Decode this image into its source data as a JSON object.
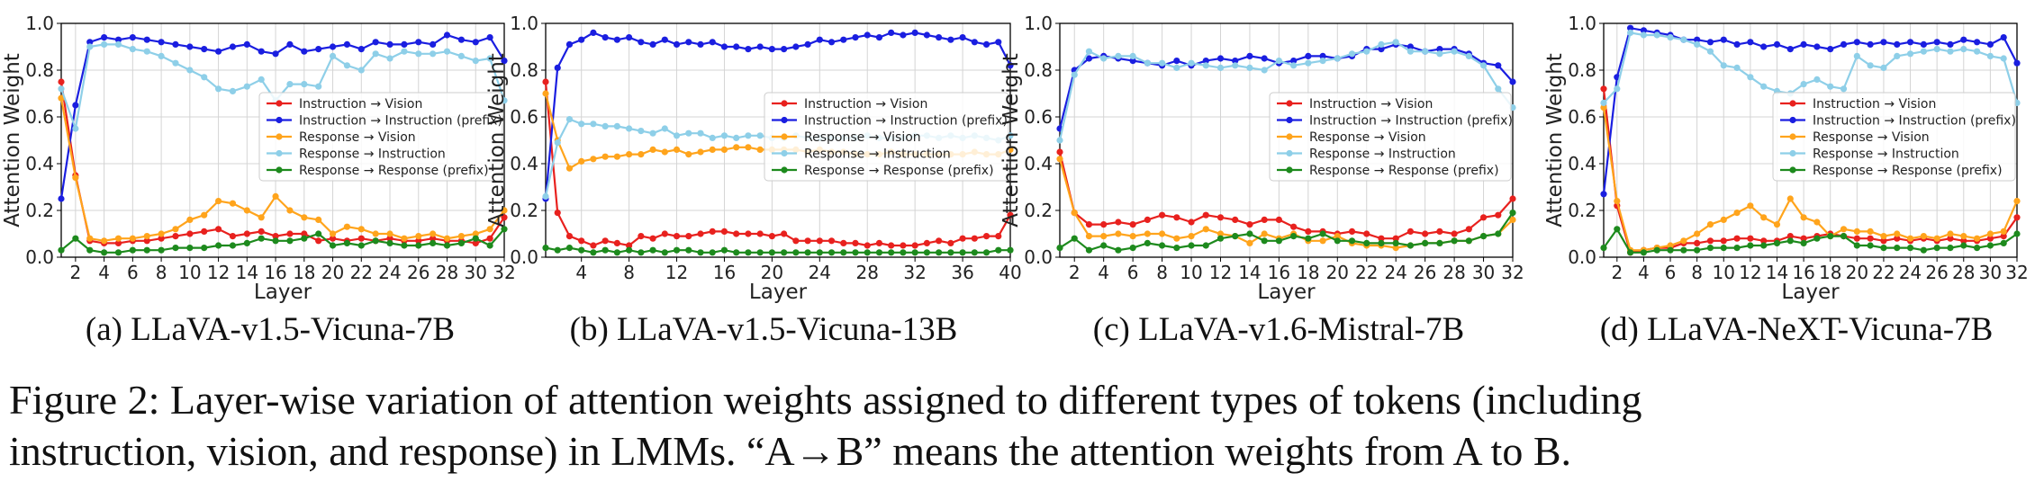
{
  "figure": {
    "caption_line1": "Figure 2: Layer-wise variation of attention weights assigned to different types of tokens (including",
    "caption_line2": "instruction, vision, and response) in LMMs. “A→B” means the attention weights from A to B."
  },
  "colors": {
    "inst_vision": "#e8211e",
    "inst_inst": "#1a1ee0",
    "resp_vision": "#ffa41c",
    "resp_inst": "#8ecfe8",
    "resp_resp": "#1d8a1d"
  },
  "chart_data": [
    {
      "type": "line",
      "caption": "(a) LLaVA-v1.5-Vicuna-7B",
      "xlabel": "Layer",
      "ylabel": "Attention Weight",
      "xlim": [
        1,
        32
      ],
      "ylim": [
        0.0,
        1.0
      ],
      "xticks": [
        "2",
        "4",
        "6",
        "8",
        "10",
        "12",
        "14",
        "16",
        "18",
        "20",
        "22",
        "24",
        "26",
        "28",
        "30",
        "32"
      ],
      "yticks": [
        "0.0",
        "0.2",
        "0.4",
        "0.6",
        "0.8",
        "1.0"
      ],
      "legend_position": "center-right",
      "x": [
        1,
        2,
        3,
        4,
        5,
        6,
        7,
        8,
        9,
        10,
        11,
        12,
        13,
        14,
        15,
        16,
        17,
        18,
        19,
        20,
        21,
        22,
        23,
        24,
        25,
        26,
        27,
        28,
        29,
        30,
        31,
        32
      ],
      "series": [
        {
          "name": "Instruction → Vision",
          "color_key": "inst_vision",
          "values": [
            0.75,
            0.35,
            0.07,
            0.06,
            0.06,
            0.07,
            0.07,
            0.08,
            0.09,
            0.1,
            0.11,
            0.12,
            0.09,
            0.1,
            0.11,
            0.09,
            0.1,
            0.1,
            0.07,
            0.08,
            0.07,
            0.08,
            0.07,
            0.08,
            0.07,
            0.07,
            0.08,
            0.07,
            0.07,
            0.06,
            0.08,
            0.17
          ]
        },
        {
          "name": "Instruction → Instruction (prefix)",
          "color_key": "inst_inst",
          "values": [
            0.25,
            0.65,
            0.92,
            0.94,
            0.93,
            0.94,
            0.93,
            0.92,
            0.91,
            0.9,
            0.89,
            0.88,
            0.9,
            0.91,
            0.88,
            0.87,
            0.91,
            0.88,
            0.89,
            0.9,
            0.91,
            0.89,
            0.92,
            0.91,
            0.91,
            0.92,
            0.91,
            0.95,
            0.93,
            0.92,
            0.94,
            0.84
          ]
        },
        {
          "name": "Response → Vision",
          "color_key": "resp_vision",
          "values": [
            0.68,
            0.34,
            0.08,
            0.07,
            0.08,
            0.08,
            0.09,
            0.1,
            0.12,
            0.16,
            0.18,
            0.24,
            0.23,
            0.2,
            0.17,
            0.26,
            0.2,
            0.17,
            0.16,
            0.1,
            0.13,
            0.12,
            0.1,
            0.1,
            0.08,
            0.09,
            0.1,
            0.08,
            0.09,
            0.1,
            0.12,
            0.2
          ]
        },
        {
          "name": "Response → Instruction",
          "color_key": "resp_inst",
          "values": [
            0.72,
            0.55,
            0.9,
            0.91,
            0.91,
            0.89,
            0.88,
            0.86,
            0.83,
            0.8,
            0.77,
            0.72,
            0.71,
            0.73,
            0.76,
            0.67,
            0.74,
            0.74,
            0.73,
            0.86,
            0.82,
            0.8,
            0.87,
            0.85,
            0.88,
            0.87,
            0.87,
            0.88,
            0.86,
            0.84,
            0.85,
            0.67
          ]
        },
        {
          "name": "Response → Response (prefix)",
          "color_key": "resp_resp",
          "values": [
            0.03,
            0.08,
            0.03,
            0.02,
            0.02,
            0.03,
            0.03,
            0.03,
            0.04,
            0.04,
            0.04,
            0.05,
            0.05,
            0.06,
            0.08,
            0.07,
            0.07,
            0.08,
            0.1,
            0.05,
            0.06,
            0.05,
            0.07,
            0.06,
            0.05,
            0.05,
            0.06,
            0.05,
            0.06,
            0.08,
            0.05,
            0.12
          ]
        }
      ]
    },
    {
      "type": "line",
      "caption": "(b) LLaVA-v1.5-Vicuna-13B",
      "xlabel": "Layer",
      "ylabel": "Attention Weight",
      "xlim": [
        1,
        40
      ],
      "ylim": [
        0.0,
        1.0
      ],
      "xticks": [
        "4",
        "8",
        "12",
        "16",
        "20",
        "24",
        "28",
        "32",
        "36",
        "40"
      ],
      "yticks": [
        "0.0",
        "0.2",
        "0.4",
        "0.6",
        "0.8",
        "1.0"
      ],
      "legend_position": "center-right",
      "x": [
        1,
        2,
        3,
        4,
        5,
        6,
        7,
        8,
        9,
        10,
        11,
        12,
        13,
        14,
        15,
        16,
        17,
        18,
        19,
        20,
        21,
        22,
        23,
        24,
        25,
        26,
        27,
        28,
        29,
        30,
        31,
        32,
        33,
        34,
        35,
        36,
        37,
        38,
        39,
        40
      ],
      "series": [
        {
          "name": "Instruction → Vision",
          "color_key": "inst_vision",
          "values": [
            0.75,
            0.19,
            0.09,
            0.07,
            0.05,
            0.07,
            0.06,
            0.05,
            0.09,
            0.08,
            0.1,
            0.09,
            0.09,
            0.1,
            0.11,
            0.11,
            0.1,
            0.1,
            0.1,
            0.09,
            0.1,
            0.07,
            0.07,
            0.07,
            0.07,
            0.06,
            0.06,
            0.05,
            0.06,
            0.05,
            0.05,
            0.05,
            0.06,
            0.07,
            0.06,
            0.08,
            0.08,
            0.09,
            0.09,
            0.18
          ]
        },
        {
          "name": "Instruction → Instruction (prefix)",
          "color_key": "inst_inst",
          "values": [
            0.25,
            0.81,
            0.91,
            0.93,
            0.96,
            0.94,
            0.93,
            0.94,
            0.92,
            0.91,
            0.93,
            0.91,
            0.92,
            0.91,
            0.92,
            0.9,
            0.9,
            0.89,
            0.9,
            0.89,
            0.89,
            0.9,
            0.91,
            0.93,
            0.92,
            0.93,
            0.94,
            0.95,
            0.94,
            0.96,
            0.95,
            0.96,
            0.95,
            0.94,
            0.93,
            0.94,
            0.92,
            0.91,
            0.92,
            0.82
          ]
        },
        {
          "name": "Response → Vision",
          "color_key": "resp_vision",
          "values": [
            0.7,
            0.5,
            0.38,
            0.41,
            0.42,
            0.43,
            0.43,
            0.44,
            0.44,
            0.46,
            0.45,
            0.46,
            0.44,
            0.45,
            0.46,
            0.46,
            0.47,
            0.47,
            0.46,
            0.46,
            0.46,
            0.46,
            0.45,
            0.46,
            0.45,
            0.45,
            0.44,
            0.44,
            0.44,
            0.45,
            0.44,
            0.44,
            0.44,
            0.44,
            0.44,
            0.44,
            0.45,
            0.44,
            0.44,
            0.46
          ]
        },
        {
          "name": "Response → Instruction",
          "color_key": "resp_inst",
          "values": [
            0.26,
            0.49,
            0.59,
            0.57,
            0.57,
            0.56,
            0.56,
            0.55,
            0.54,
            0.53,
            0.55,
            0.52,
            0.53,
            0.53,
            0.51,
            0.52,
            0.51,
            0.52,
            0.52,
            0.51,
            0.51,
            0.52,
            0.51,
            0.51,
            0.51,
            0.51,
            0.51,
            0.52,
            0.51,
            0.51,
            0.51,
            0.52,
            0.52,
            0.51,
            0.52,
            0.51,
            0.52,
            0.51,
            0.5,
            0.52
          ]
        },
        {
          "name": "Response → Response (prefix)",
          "color_key": "resp_resp",
          "values": [
            0.04,
            0.03,
            0.04,
            0.03,
            0.02,
            0.03,
            0.02,
            0.03,
            0.02,
            0.03,
            0.02,
            0.03,
            0.03,
            0.02,
            0.02,
            0.03,
            0.02,
            0.02,
            0.02,
            0.02,
            0.02,
            0.02,
            0.02,
            0.02,
            0.02,
            0.02,
            0.02,
            0.02,
            0.02,
            0.02,
            0.02,
            0.02,
            0.02,
            0.02,
            0.02,
            0.02,
            0.02,
            0.02,
            0.03,
            0.03
          ]
        }
      ]
    },
    {
      "type": "line",
      "caption": "(c) LLaVA-v1.6-Mistral-7B",
      "xlabel": "Layer",
      "ylabel": "Attention Weight",
      "xlim": [
        1,
        32
      ],
      "ylim": [
        0.0,
        1.0
      ],
      "xticks": [
        "2",
        "4",
        "6",
        "8",
        "10",
        "12",
        "14",
        "16",
        "18",
        "20",
        "22",
        "24",
        "26",
        "28",
        "30",
        "32"
      ],
      "yticks": [
        "0.0",
        "0.2",
        "0.4",
        "0.6",
        "0.8",
        "1.0"
      ],
      "legend_position": "center-right",
      "x": [
        1,
        2,
        3,
        4,
        5,
        6,
        7,
        8,
        9,
        10,
        11,
        12,
        13,
        14,
        15,
        16,
        17,
        18,
        19,
        20,
        21,
        22,
        23,
        24,
        25,
        26,
        27,
        28,
        29,
        30,
        31,
        32
      ],
      "series": [
        {
          "name": "Instruction → Vision",
          "color_key": "inst_vision",
          "values": [
            0.45,
            0.19,
            0.14,
            0.14,
            0.15,
            0.14,
            0.16,
            0.18,
            0.17,
            0.15,
            0.18,
            0.17,
            0.16,
            0.14,
            0.16,
            0.16,
            0.13,
            0.11,
            0.11,
            0.1,
            0.11,
            0.1,
            0.08,
            0.08,
            0.11,
            0.1,
            0.11,
            0.1,
            0.12,
            0.17,
            0.18,
            0.25
          ]
        },
        {
          "name": "Instruction → Instruction (prefix)",
          "color_key": "inst_inst",
          "values": [
            0.55,
            0.8,
            0.85,
            0.86,
            0.85,
            0.84,
            0.83,
            0.82,
            0.84,
            0.82,
            0.84,
            0.85,
            0.84,
            0.86,
            0.85,
            0.83,
            0.84,
            0.86,
            0.86,
            0.85,
            0.86,
            0.89,
            0.89,
            0.91,
            0.9,
            0.88,
            0.89,
            0.89,
            0.87,
            0.83,
            0.82,
            0.75
          ]
        },
        {
          "name": "Response → Vision",
          "color_key": "resp_vision",
          "values": [
            0.42,
            0.19,
            0.09,
            0.09,
            0.1,
            0.09,
            0.1,
            0.1,
            0.08,
            0.09,
            0.12,
            0.1,
            0.09,
            0.06,
            0.1,
            0.08,
            0.1,
            0.07,
            0.07,
            0.09,
            0.06,
            0.05,
            0.05,
            0.04,
            0.05,
            0.06,
            0.06,
            0.07,
            0.07,
            0.09,
            0.1,
            0.16
          ]
        },
        {
          "name": "Response → Instruction",
          "color_key": "resp_inst",
          "values": [
            0.5,
            0.78,
            0.88,
            0.85,
            0.86,
            0.86,
            0.83,
            0.83,
            0.81,
            0.83,
            0.82,
            0.81,
            0.82,
            0.81,
            0.8,
            0.84,
            0.82,
            0.83,
            0.84,
            0.85,
            0.87,
            0.88,
            0.91,
            0.92,
            0.88,
            0.88,
            0.87,
            0.88,
            0.86,
            0.82,
            0.72,
            0.64
          ]
        },
        {
          "name": "Response → Response (prefix)",
          "color_key": "resp_resp",
          "values": [
            0.04,
            0.08,
            0.03,
            0.05,
            0.03,
            0.04,
            0.06,
            0.05,
            0.04,
            0.05,
            0.05,
            0.08,
            0.09,
            0.1,
            0.07,
            0.07,
            0.09,
            0.08,
            0.1,
            0.07,
            0.07,
            0.06,
            0.06,
            0.06,
            0.05,
            0.06,
            0.06,
            0.07,
            0.07,
            0.09,
            0.1,
            0.19
          ]
        }
      ]
    },
    {
      "type": "line",
      "caption": "(d) LLaVA-NeXT-Vicuna-7B",
      "xlabel": "Layer",
      "ylabel": "Attention Weight",
      "xlim": [
        1,
        32
      ],
      "ylim": [
        0.0,
        1.0
      ],
      "xticks": [
        "2",
        "4",
        "6",
        "8",
        "10",
        "12",
        "14",
        "16",
        "18",
        "20",
        "22",
        "24",
        "26",
        "28",
        "30",
        "32"
      ],
      "yticks": [
        "0.0",
        "0.2",
        "0.4",
        "0.6",
        "0.8",
        "1.0"
      ],
      "legend_position": "center-right",
      "x": [
        1,
        2,
        3,
        4,
        5,
        6,
        7,
        8,
        9,
        10,
        11,
        12,
        13,
        14,
        15,
        16,
        17,
        18,
        19,
        20,
        21,
        22,
        23,
        24,
        25,
        26,
        27,
        28,
        29,
        30,
        31,
        32
      ],
      "series": [
        {
          "name": "Instruction → Vision",
          "color_key": "inst_vision",
          "values": [
            0.72,
            0.22,
            0.02,
            0.03,
            0.04,
            0.04,
            0.06,
            0.06,
            0.07,
            0.07,
            0.08,
            0.08,
            0.07,
            0.07,
            0.09,
            0.08,
            0.09,
            0.1,
            0.09,
            0.08,
            0.08,
            0.07,
            0.08,
            0.07,
            0.08,
            0.07,
            0.08,
            0.07,
            0.07,
            0.08,
            0.09,
            0.17
          ]
        },
        {
          "name": "Instruction → Instruction (prefix)",
          "color_key": "inst_inst",
          "values": [
            0.27,
            0.77,
            0.98,
            0.97,
            0.96,
            0.95,
            0.93,
            0.93,
            0.92,
            0.93,
            0.91,
            0.92,
            0.9,
            0.91,
            0.89,
            0.91,
            0.9,
            0.89,
            0.91,
            0.92,
            0.91,
            0.92,
            0.91,
            0.92,
            0.91,
            0.92,
            0.91,
            0.93,
            0.92,
            0.91,
            0.94,
            0.83
          ]
        },
        {
          "name": "Response → Vision",
          "color_key": "resp_vision",
          "values": [
            0.64,
            0.24,
            0.03,
            0.03,
            0.04,
            0.05,
            0.07,
            0.1,
            0.14,
            0.16,
            0.19,
            0.22,
            0.17,
            0.14,
            0.25,
            0.17,
            0.15,
            0.09,
            0.12,
            0.11,
            0.11,
            0.09,
            0.1,
            0.08,
            0.09,
            0.08,
            0.1,
            0.09,
            0.08,
            0.1,
            0.11,
            0.24
          ]
        },
        {
          "name": "Response → Instruction",
          "color_key": "resp_inst",
          "values": [
            0.66,
            0.72,
            0.96,
            0.95,
            0.95,
            0.94,
            0.93,
            0.91,
            0.88,
            0.82,
            0.81,
            0.77,
            0.73,
            0.71,
            0.7,
            0.74,
            0.76,
            0.73,
            0.72,
            0.86,
            0.82,
            0.81,
            0.86,
            0.87,
            0.88,
            0.89,
            0.88,
            0.89,
            0.88,
            0.86,
            0.85,
            0.66
          ]
        },
        {
          "name": "Response → Response (prefix)",
          "color_key": "resp_resp",
          "values": [
            0.04,
            0.12,
            0.02,
            0.02,
            0.03,
            0.03,
            0.03,
            0.03,
            0.04,
            0.04,
            0.04,
            0.05,
            0.05,
            0.06,
            0.07,
            0.06,
            0.08,
            0.09,
            0.09,
            0.05,
            0.05,
            0.04,
            0.04,
            0.04,
            0.03,
            0.04,
            0.04,
            0.05,
            0.04,
            0.05,
            0.06,
            0.1
          ]
        }
      ]
    }
  ]
}
